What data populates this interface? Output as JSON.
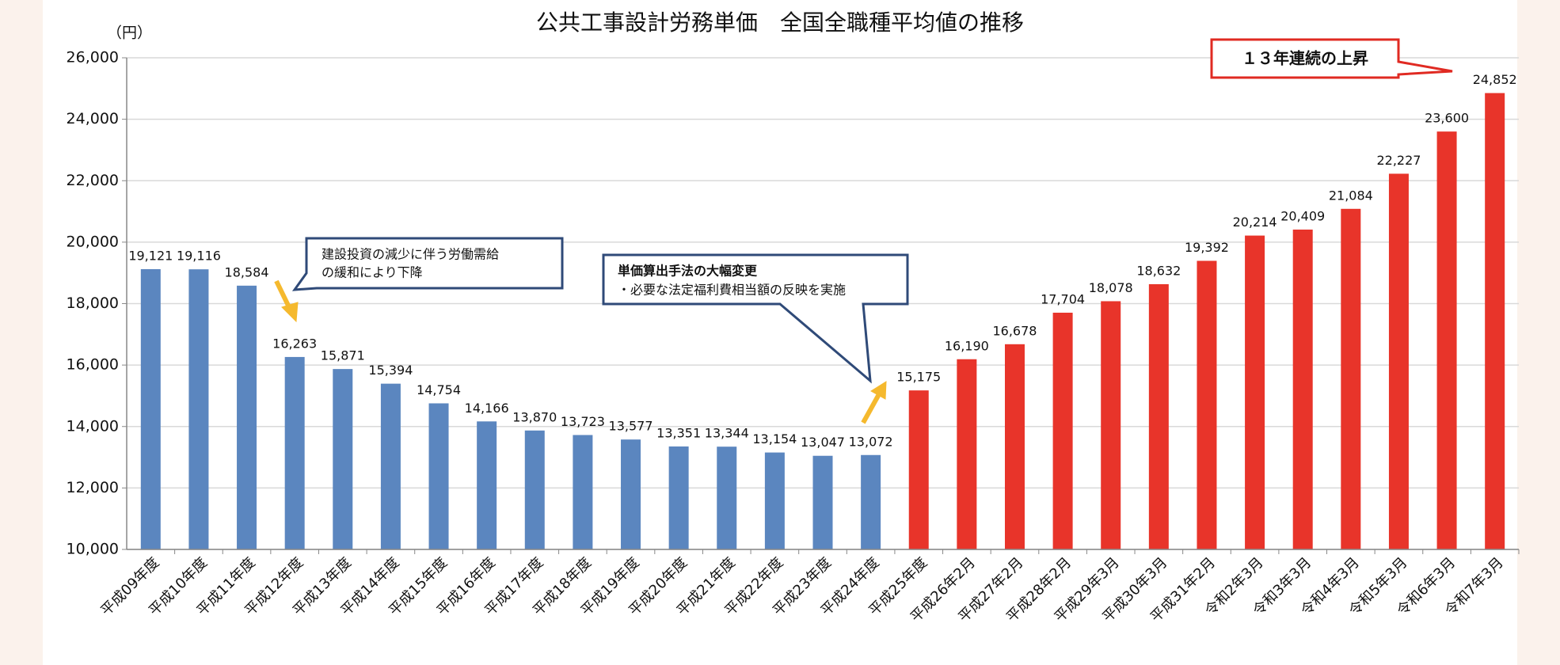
{
  "chart_data": {
    "type": "bar",
    "title": "公共工事設計労務単価　全国全職種平均値の推移",
    "y_unit": "（円）",
    "categories": [
      "平成09年度",
      "平成10年度",
      "平成11年度",
      "平成12年度",
      "平成13年度",
      "平成14年度",
      "平成15年度",
      "平成16年度",
      "平成17年度",
      "平成18年度",
      "平成19年度",
      "平成20年度",
      "平成21年度",
      "平成22年度",
      "平成23年度",
      "平成24年度",
      "平成25年度",
      "平成26年2月",
      "平成27年2月",
      "平成28年2月",
      "平成29年3月",
      "平成30年3月",
      "平成31年2月",
      "令和2年3月",
      "令和3年3月",
      "令和4年3月",
      "令和5年3月",
      "令和6年3月",
      "令和7年3月"
    ],
    "values": [
      19121,
      19116,
      18584,
      16263,
      15871,
      15394,
      14754,
      14166,
      13870,
      13723,
      13577,
      13351,
      13344,
      13154,
      13047,
      13072,
      15175,
      16190,
      16678,
      17704,
      18078,
      18632,
      19392,
      20214,
      20409,
      21084,
      22227,
      23600,
      24852
    ],
    "value_labels": [
      "19,121",
      "19,116",
      "18,584",
      "16,263",
      "15,871",
      "15,394",
      "14,754",
      "14,166",
      "13,870",
      "13,723",
      "13,577",
      "13,351",
      "13,344",
      "13,154",
      "13,047",
      "13,072",
      "15,175",
      "16,190",
      "16,678",
      "17,704",
      "18,078",
      "18,632",
      "19,392",
      "20,214",
      "20,409",
      "21,084",
      "22,227",
      "23,600",
      "24,852"
    ],
    "colors": [
      "#5b86bf",
      "#5b86bf",
      "#5b86bf",
      "#5b86bf",
      "#5b86bf",
      "#5b86bf",
      "#5b86bf",
      "#5b86bf",
      "#5b86bf",
      "#5b86bf",
      "#5b86bf",
      "#5b86bf",
      "#5b86bf",
      "#5b86bf",
      "#5b86bf",
      "#5b86bf",
      "#e8342a",
      "#e8342a",
      "#e8342a",
      "#e8342a",
      "#e8342a",
      "#e8342a",
      "#e8342a",
      "#e8342a",
      "#e8342a",
      "#e8342a",
      "#e8342a",
      "#e8342a",
      "#e8342a"
    ],
    "ylim": [
      10000,
      26000
    ],
    "yticks": [
      {
        "value": 10000,
        "label": "10,000"
      },
      {
        "value": 12000,
        "label": "12,000"
      },
      {
        "value": 14000,
        "label": "14,000"
      },
      {
        "value": 16000,
        "label": "16,000"
      },
      {
        "value": 18000,
        "label": "18,000"
      },
      {
        "value": 20000,
        "label": "20,000"
      },
      {
        "value": 22000,
        "label": "22,000"
      },
      {
        "value": 24000,
        "label": "24,000"
      },
      {
        "value": 26000,
        "label": "26,000"
      }
    ],
    "grid": true,
    "annotations": [
      {
        "lines": [
          "建設投資の減少に伴う労働需給",
          "の緩和により下降"
        ]
      },
      {
        "lines": [
          "単価算出手法の大幅変更",
          "・必要な法定福利費相当額の反映を実施"
        ]
      },
      {
        "lines": [
          "１３年連続の上昇"
        ]
      }
    ]
  }
}
